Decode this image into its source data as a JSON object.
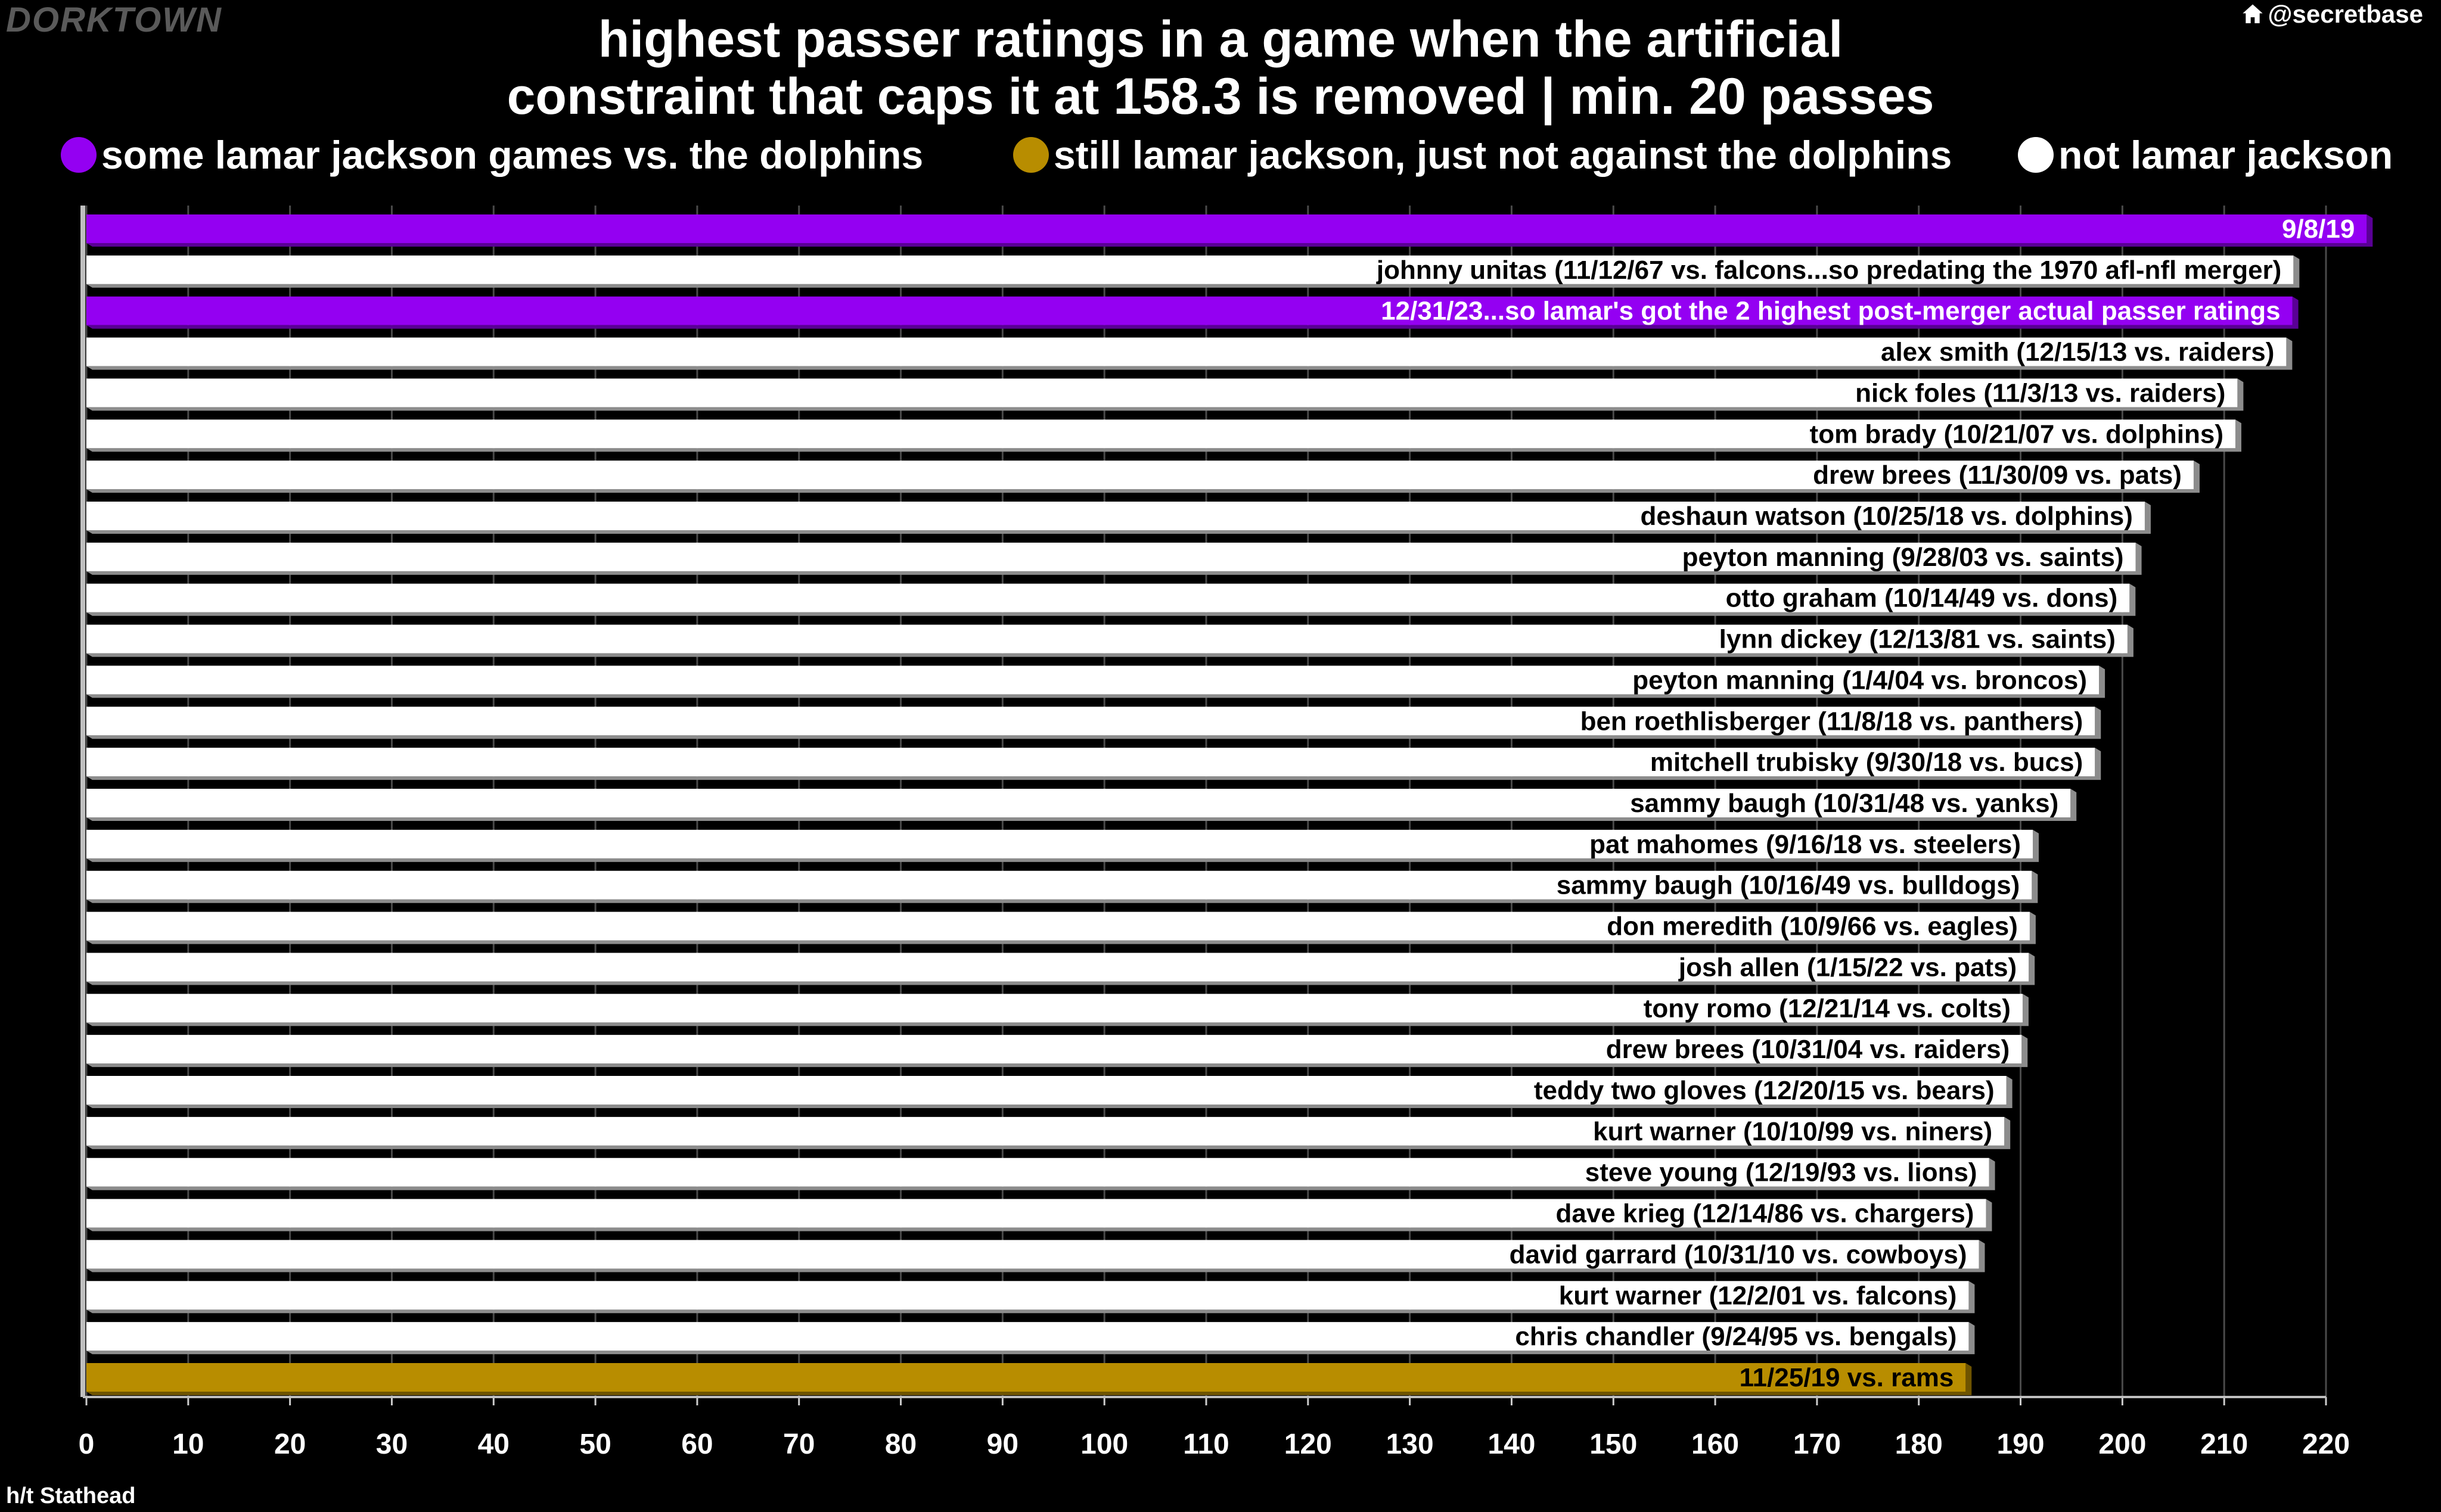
{
  "header": {
    "brand": "DORKTOWN",
    "handle": "@secretbase",
    "handle_icon": "home-icon",
    "title_line1": "highest passer ratings in a game when the artificial",
    "title_line2": "constraint that caps it at 158.3 is removed | min. 20 passes"
  },
  "legend": [
    {
      "label": "some lamar jackson games vs. the dolphins",
      "color": "#9400f2"
    },
    {
      "label": "still lamar jackson, just not against the dolphins",
      "color": "#b88d00"
    },
    {
      "label": "not lamar jackson",
      "color": "#ffffff"
    }
  ],
  "footer": {
    "credit": "h/t Stathead"
  },
  "colors": {
    "background": "#000000",
    "grid": "#4a4a4a",
    "bar_shadow": "#8c8c8c"
  },
  "chart_data": {
    "type": "bar",
    "orientation": "horizontal",
    "xlim": [
      0,
      220
    ],
    "xticks": [
      0,
      10,
      20,
      30,
      40,
      50,
      60,
      70,
      80,
      90,
      100,
      110,
      120,
      130,
      140,
      150,
      160,
      170,
      180,
      190,
      200,
      210,
      220
    ],
    "grid": "vertical",
    "bars": [
      {
        "label": "9/8/19",
        "value": 224.0,
        "group": "dolphins"
      },
      {
        "label": "johnny unitas (11/12/67 vs. falcons...so predating the 1970 afl-nfl merger)",
        "value": 216.8,
        "group": "other"
      },
      {
        "label": "12/31/23...so lamar's got the 2 highest post-merger actual passer ratings",
        "value": 216.7,
        "group": "dolphins"
      },
      {
        "label": "alex smith (12/15/13 vs. raiders)",
        "value": 216.1,
        "group": "other"
      },
      {
        "label": "nick foles (11/3/13 vs. raiders)",
        "value": 211.3,
        "group": "other"
      },
      {
        "label": "tom brady (10/21/07 vs. dolphins)",
        "value": 211.1,
        "group": "other"
      },
      {
        "label": "drew brees (11/30/09 vs. pats)",
        "value": 207.0,
        "group": "other"
      },
      {
        "label": "deshaun watson (10/25/18 vs. dolphins)",
        "value": 202.2,
        "group": "other"
      },
      {
        "label": "peyton manning (9/28/03 vs. saints)",
        "value": 201.3,
        "group": "other"
      },
      {
        "label": "otto graham (10/14/49 vs. dons)",
        "value": 200.7,
        "group": "other"
      },
      {
        "label": "lynn dickey (12/13/81 vs. saints)",
        "value": 200.5,
        "group": "other"
      },
      {
        "label": "peyton manning (1/4/04 vs. broncos)",
        "value": 197.7,
        "group": "other"
      },
      {
        "label": "ben roethlisberger (11/8/18 vs. panthers)",
        "value": 197.3,
        "group": "other"
      },
      {
        "label": "mitchell trubisky (9/30/18 vs. bucs)",
        "value": 197.3,
        "group": "other"
      },
      {
        "label": "sammy baugh (10/31/48 vs. yanks)",
        "value": 194.9,
        "group": "other"
      },
      {
        "label": "pat mahomes (9/16/18 vs. steelers)",
        "value": 191.2,
        "group": "other"
      },
      {
        "label": "sammy baugh (10/16/49 vs. bulldogs)",
        "value": 191.1,
        "group": "other"
      },
      {
        "label": "don meredith (10/9/66 vs. eagles)",
        "value": 190.9,
        "group": "other"
      },
      {
        "label": "josh allen (1/15/22 vs. pats)",
        "value": 190.8,
        "group": "other"
      },
      {
        "label": "tony romo (12/21/14 vs. colts)",
        "value": 190.2,
        "group": "other"
      },
      {
        "label": "drew brees (10/31/04 vs. raiders)",
        "value": 190.1,
        "group": "other"
      },
      {
        "label": "teddy two gloves (12/20/15 vs. bears)",
        "value": 188.6,
        "group": "other"
      },
      {
        "label": "kurt warner (10/10/99 vs. niners)",
        "value": 188.4,
        "group": "other"
      },
      {
        "label": "steve young (12/19/93 vs. lions)",
        "value": 186.9,
        "group": "other"
      },
      {
        "label": "dave krieg (12/14/86 vs. chargers)",
        "value": 186.6,
        "group": "other"
      },
      {
        "label": "david garrard (10/31/10 vs. cowboys)",
        "value": 185.9,
        "group": "other"
      },
      {
        "label": "kurt warner (12/2/01 vs. falcons)",
        "value": 184.9,
        "group": "other"
      },
      {
        "label": "chris chandler (9/24/95 vs. bengals)",
        "value": 184.9,
        "group": "other"
      },
      {
        "label": "11/25/19 vs. rams",
        "value": 184.6,
        "group": "lamar"
      }
    ],
    "group_colors": {
      "dolphins": {
        "fill": "#9400f2",
        "shadow": "#5a0096",
        "text": "#ffffff"
      },
      "lamar": {
        "fill": "#b88d00",
        "shadow": "#6e5400",
        "text": "#000000"
      },
      "other": {
        "fill": "#ffffff",
        "shadow": "#8c8c8c",
        "text": "#000000"
      }
    }
  }
}
